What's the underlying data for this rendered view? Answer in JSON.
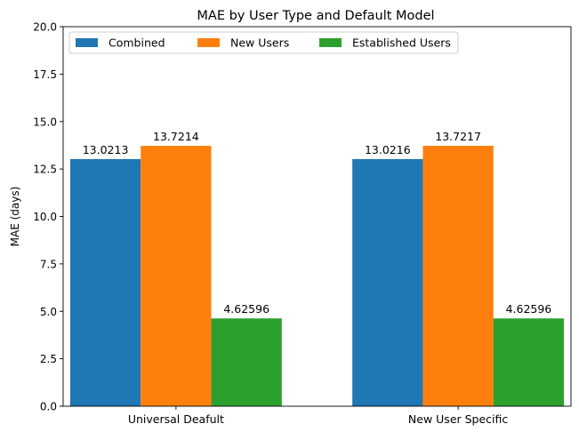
{
  "chart_data": {
    "type": "bar",
    "title": "MAE by User Type and Default Model",
    "xlabel": "",
    "ylabel": "MAE (days)",
    "categories": [
      "Universal Deafult",
      "New User Specific"
    ],
    "ylim": [
      0,
      20
    ],
    "yticks": [
      0.0,
      2.5,
      5.0,
      7.5,
      10.0,
      12.5,
      15.0,
      17.5,
      20.0
    ],
    "ytick_labels": [
      "0.0",
      "2.5",
      "5.0",
      "7.5",
      "10.0",
      "12.5",
      "15.0",
      "17.5",
      "20.0"
    ],
    "grid": false,
    "legend_position": "top-left",
    "series": [
      {
        "name": "Combined",
        "color": "#1f77b4",
        "values": [
          13.0213,
          13.0216
        ],
        "labels": [
          "13.0213",
          "13.0216"
        ]
      },
      {
        "name": "New Users",
        "color": "#ff7f0e",
        "values": [
          13.7214,
          13.7217
        ],
        "labels": [
          "13.7214",
          "13.7217"
        ]
      },
      {
        "name": "Established Users",
        "color": "#2ca02c",
        "values": [
          4.62596,
          4.62596
        ],
        "labels": [
          "4.62596",
          "4.62596"
        ]
      }
    ]
  }
}
